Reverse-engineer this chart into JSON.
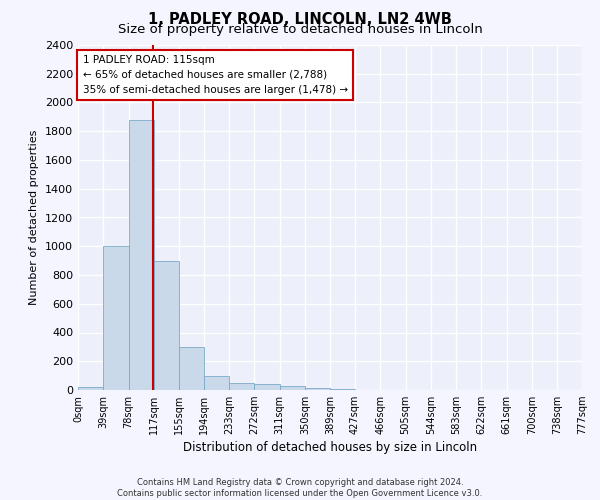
{
  "title": "1, PADLEY ROAD, LINCOLN, LN2 4WB",
  "subtitle": "Size of property relative to detached houses in Lincoln",
  "xlabel": "Distribution of detached houses by size in Lincoln",
  "ylabel": "Number of detached properties",
  "footer_line1": "Contains HM Land Registry data © Crown copyright and database right 2024.",
  "footer_line2": "Contains public sector information licensed under the Open Government Licence v3.0.",
  "bin_edges": [
    0,
    39,
    78,
    117,
    155,
    194,
    233,
    272,
    311,
    350,
    389,
    427,
    466,
    505,
    544,
    583,
    622,
    661,
    700,
    738,
    777
  ],
  "bar_values": [
    20,
    1000,
    1875,
    900,
    300,
    100,
    50,
    40,
    30,
    15,
    5,
    3,
    2,
    1,
    1,
    1,
    0,
    0,
    0,
    0
  ],
  "bar_color": "#c9d9ea",
  "bar_edge_color": "#7aaac8",
  "property_size": 115,
  "vline_color": "#cc0000",
  "annotation_text": "1 PADLEY ROAD: 115sqm\n← 65% of detached houses are smaller (2,788)\n35% of semi-detached houses are larger (1,478) →",
  "annotation_box_color": "#cc0000",
  "annotation_text_color": "#000000",
  "ylim": [
    0,
    2400
  ],
  "yticks": [
    0,
    200,
    400,
    600,
    800,
    1000,
    1200,
    1400,
    1600,
    1800,
    2000,
    2200,
    2400
  ],
  "bg_color": "#edf0fa",
  "grid_color": "#ffffff",
  "fig_bg_color": "#f5f5ff",
  "title_fontsize": 10.5,
  "subtitle_fontsize": 9.5,
  "tick_label_fontsize": 7,
  "ylabel_fontsize": 8,
  "xlabel_fontsize": 8.5,
  "footer_fontsize": 6
}
